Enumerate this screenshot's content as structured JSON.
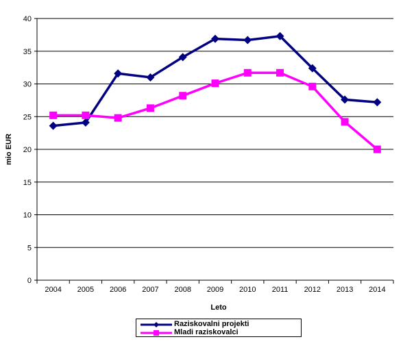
{
  "chart_data": {
    "type": "line",
    "categories": [
      "2004",
      "2005",
      "2006",
      "2007",
      "2008",
      "2009",
      "2010",
      "2011",
      "2012",
      "2013",
      "2014"
    ],
    "series": [
      {
        "name": "Raziskovalni projekti",
        "color": "#000080",
        "marker": "diamond",
        "values": [
          23.6,
          24.1,
          31.6,
          31.0,
          34.1,
          36.9,
          36.7,
          37.3,
          32.4,
          27.6,
          27.2
        ]
      },
      {
        "name": "Mladi raziskovalci",
        "color": "#FF00FF",
        "marker": "square",
        "values": [
          25.2,
          25.2,
          24.8,
          26.3,
          28.2,
          30.1,
          31.7,
          31.7,
          29.6,
          24.2,
          20.0
        ]
      }
    ],
    "xlabel": "Leto",
    "ylabel": "mio EUR",
    "ylim": [
      0,
      40
    ],
    "yticks": [
      "0",
      "5",
      "10",
      "15",
      "20",
      "25",
      "30",
      "35",
      "40"
    ],
    "grid": true,
    "legend_position": "bottom"
  }
}
